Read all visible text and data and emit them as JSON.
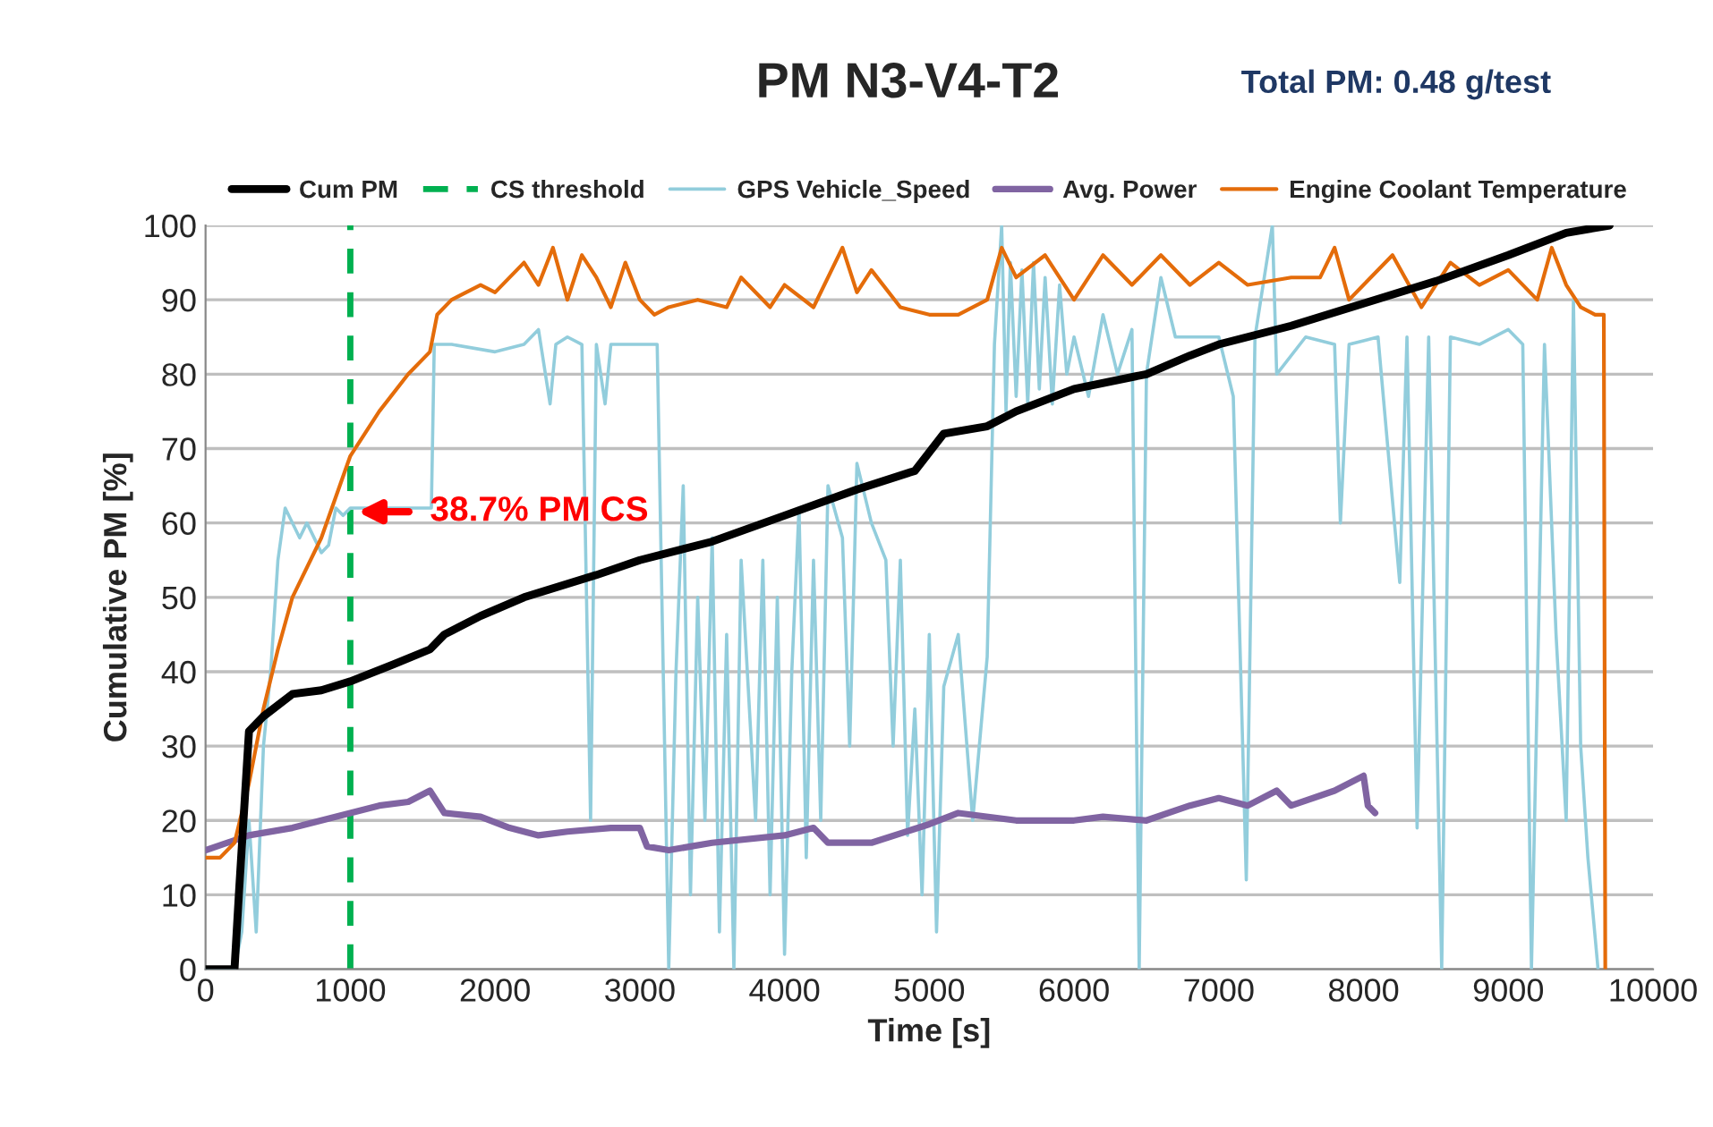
{
  "chart_data": {
    "type": "line",
    "title": "PM N3-V4-T2",
    "xlabel": "Time [s]",
    "ylabel": "Cumulative PM [%]",
    "annotations": [
      "Total PM: 0.48 g/test",
      {
        "text": "38.7% PM CS",
        "x": 1050,
        "y": 61.5
      }
    ],
    "xlim": [
      0,
      10000
    ],
    "ylim": [
      0,
      100
    ],
    "xticks": [
      0,
      1000,
      2000,
      3000,
      4000,
      5000,
      6000,
      7000,
      8000,
      9000,
      10000
    ],
    "yticks": [
      0,
      10,
      20,
      30,
      40,
      50,
      60,
      70,
      80,
      90,
      100
    ],
    "grid": "y",
    "legend": "top",
    "line_style": "solid",
    "marker": "none",
    "ref_lines": [
      {
        "axis": "x",
        "value": 1000,
        "label": "CS threshold",
        "color": "#00b050",
        "line_style": "dashed"
      }
    ],
    "series": [
      {
        "name": "Cum PM",
        "color": "#000000",
        "x": [
          0,
          200,
          230,
          300,
          400,
          600,
          800,
          1000,
          1300,
          1550,
          1650,
          1900,
          2200,
          2700,
          3000,
          3500,
          4000,
          4500,
          4900,
          5100,
          5400,
          5600,
          6000,
          6500,
          6800,
          7000,
          7500,
          8000,
          8500,
          9000,
          9400,
          9700
        ],
        "values": [
          0,
          0,
          10,
          32,
          34,
          37,
          37.5,
          38.7,
          41,
          43,
          45,
          47.5,
          50,
          53,
          55,
          57.5,
          61,
          64.5,
          67,
          72,
          73,
          75,
          78,
          80,
          82.5,
          84,
          86.5,
          89.5,
          92.5,
          96,
          99,
          100
        ]
      },
      {
        "name": "GPS Vehicle_Speed",
        "color": "#92cddc",
        "x": [
          0,
          200,
          250,
          300,
          350,
          400,
          450,
          500,
          550,
          650,
          700,
          800,
          850,
          900,
          950,
          1000,
          1500,
          1560,
          1580,
          1700,
          2000,
          2200,
          2300,
          2380,
          2420,
          2500,
          2600,
          2660,
          2700,
          2760,
          2800,
          3000,
          3120,
          3200,
          3250,
          3300,
          3350,
          3400,
          3450,
          3500,
          3550,
          3600,
          3650,
          3700,
          3800,
          3850,
          3900,
          3950,
          4000,
          4050,
          4100,
          4150,
          4200,
          4250,
          4300,
          4400,
          4450,
          4500,
          4600,
          4700,
          4750,
          4800,
          4850,
          4900,
          4950,
          5000,
          5050,
          5100,
          5200,
          5300,
          5400,
          5450,
          5500,
          5530,
          5560,
          5600,
          5640,
          5680,
          5720,
          5760,
          5800,
          5850,
          5900,
          5950,
          6000,
          6100,
          6200,
          6300,
          6400,
          6450,
          6500,
          6600,
          6700,
          6900,
          7000,
          7100,
          7190,
          7250,
          7370,
          7400,
          7600,
          7800,
          7840,
          7900,
          8100,
          8250,
          8300,
          8370,
          8450,
          8540,
          8600,
          8800,
          9000,
          9100,
          9160,
          9250,
          9330,
          9400,
          9450,
          9500,
          9550,
          9620
        ],
        "values": [
          0,
          0,
          5,
          20,
          5,
          30,
          40,
          55,
          62,
          58,
          60,
          56,
          57,
          62,
          61,
          62,
          62,
          62,
          84,
          84,
          83,
          84,
          86,
          76,
          84,
          85,
          84,
          20,
          84,
          76,
          84,
          84,
          84,
          0,
          40,
          65,
          10,
          50,
          20,
          58,
          5,
          45,
          0,
          55,
          20,
          55,
          10,
          50,
          2,
          40,
          62,
          15,
          55,
          20,
          65,
          58,
          30,
          68,
          60,
          55,
          30,
          55,
          18,
          35,
          10,
          45,
          5,
          38,
          45,
          20,
          42,
          84,
          100,
          75,
          95,
          77,
          94,
          76,
          95,
          78,
          93,
          76,
          92,
          80,
          85,
          77,
          88,
          80,
          86,
          0,
          80,
          93,
          85,
          85,
          85,
          77,
          12,
          85,
          100,
          80,
          85,
          84,
          60,
          84,
          85,
          52,
          85,
          19,
          85,
          0,
          85,
          84,
          86,
          84,
          0,
          84,
          45,
          20,
          90,
          30,
          15,
          0
        ]
      },
      {
        "name": "Avg. Power",
        "color": "#8064a2",
        "x": [
          0,
          300,
          600,
          1000,
          1200,
          1400,
          1550,
          1650,
          1900,
          2100,
          2300,
          2500,
          2800,
          3000,
          3050,
          3200,
          3500,
          4000,
          4200,
          4300,
          4600,
          5000,
          5200,
          5600,
          6000,
          6200,
          6500,
          6800,
          7000,
          7200,
          7400,
          7500,
          7800,
          8000,
          8030,
          8080
        ],
        "values": [
          16,
          18,
          19,
          21,
          22,
          22.5,
          24,
          21,
          20.5,
          19,
          18,
          18.5,
          19,
          19,
          16.5,
          16,
          17,
          18,
          19,
          17,
          17,
          19.5,
          21,
          20,
          20,
          20.5,
          20,
          22,
          23,
          22,
          24,
          22,
          24,
          26,
          22,
          21
        ]
      },
      {
        "name": "Engine Coolant Temperature",
        "color": "#e46c0a",
        "x": [
          0,
          100,
          200,
          300,
          400,
          500,
          600,
          800,
          1000,
          1200,
          1400,
          1550,
          1600,
          1700,
          1900,
          2000,
          2200,
          2300,
          2400,
          2500,
          2600,
          2700,
          2800,
          2900,
          3000,
          3100,
          3200,
          3400,
          3600,
          3700,
          3900,
          4000,
          4200,
          4400,
          4500,
          4600,
          4800,
          5000,
          5200,
          5400,
          5500,
          5600,
          5800,
          6000,
          6200,
          6400,
          6600,
          6800,
          7000,
          7200,
          7500,
          7700,
          7800,
          7900,
          8000,
          8200,
          8400,
          8600,
          8800,
          9000,
          9200,
          9300,
          9400,
          9500,
          9600,
          9660,
          9670
        ],
        "values": [
          15,
          15,
          17,
          25,
          35,
          43,
          50,
          58,
          69,
          75,
          80,
          83,
          88,
          90,
          92,
          91,
          95,
          92,
          97,
          90,
          96,
          93,
          89,
          95,
          90,
          88,
          89,
          90,
          89,
          93,
          89,
          92,
          89,
          97,
          91,
          94,
          89,
          88,
          88,
          90,
          97,
          93,
          96,
          90,
          96,
          92,
          96,
          92,
          95,
          92,
          93,
          93,
          97,
          90,
          92,
          96,
          89,
          95,
          92,
          94,
          90,
          97,
          92,
          89,
          88,
          88,
          0
        ]
      }
    ]
  }
}
